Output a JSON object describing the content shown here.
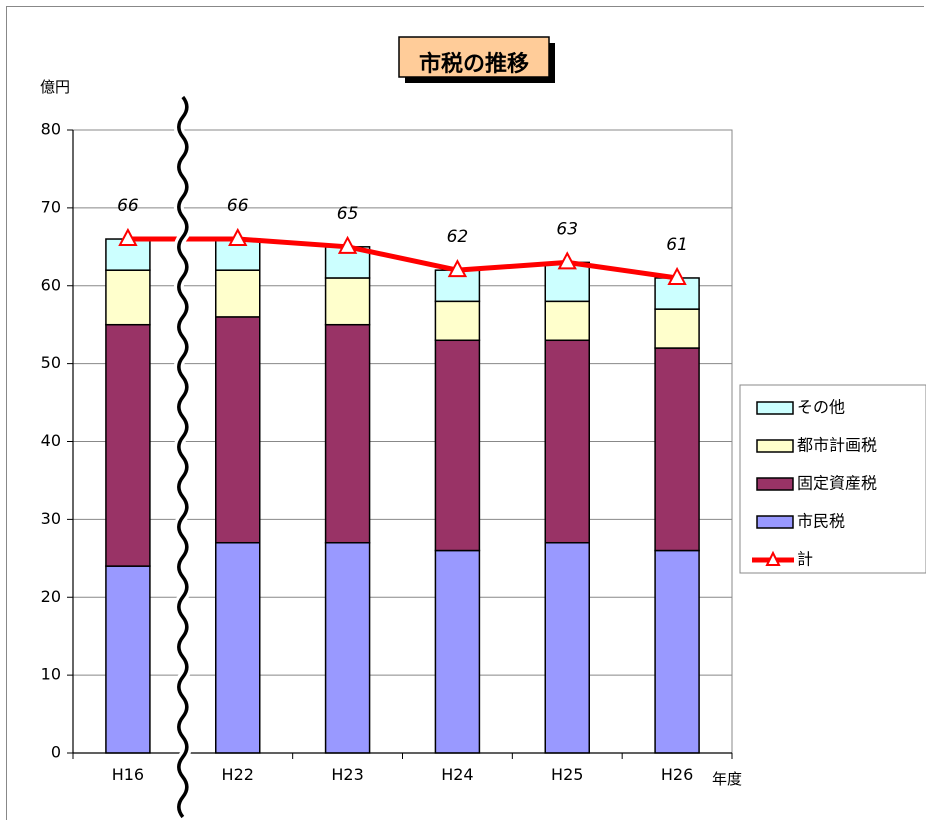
{
  "chart_data": {
    "type": "bar",
    "stacked": true,
    "title": "市税の推移",
    "ylabel": "億円",
    "xlabel": "年度",
    "ylim": [
      0,
      80
    ],
    "yticks": [
      0,
      10,
      20,
      30,
      40,
      50,
      60,
      70,
      80
    ],
    "grid": true,
    "legend_position": "right",
    "categories": [
      "H16",
      "H22",
      "H23",
      "H24",
      "H25",
      "H26"
    ],
    "series": [
      {
        "name": "市民税",
        "values": [
          24,
          27,
          27,
          26,
          27,
          26
        ],
        "color": "#9999FF"
      },
      {
        "name": "固定資産税",
        "values": [
          31,
          29,
          28,
          27,
          26,
          26
        ],
        "color": "#993366"
      },
      {
        "name": "都市計画税",
        "values": [
          7,
          6,
          6,
          5,
          5,
          5
        ],
        "color": "#FFFFCC"
      },
      {
        "name": "その他",
        "values": [
          4,
          4,
          4,
          4,
          5,
          4
        ],
        "color": "#CCFFFF"
      }
    ],
    "total": {
      "name": "計",
      "values": [
        66,
        66,
        65,
        62,
        63,
        61
      ],
      "color": "#FF0000"
    },
    "axis_break_after": "H16",
    "legend_order": [
      "その他",
      "都市計画税",
      "固定資産税",
      "市民税",
      "計"
    ]
  }
}
